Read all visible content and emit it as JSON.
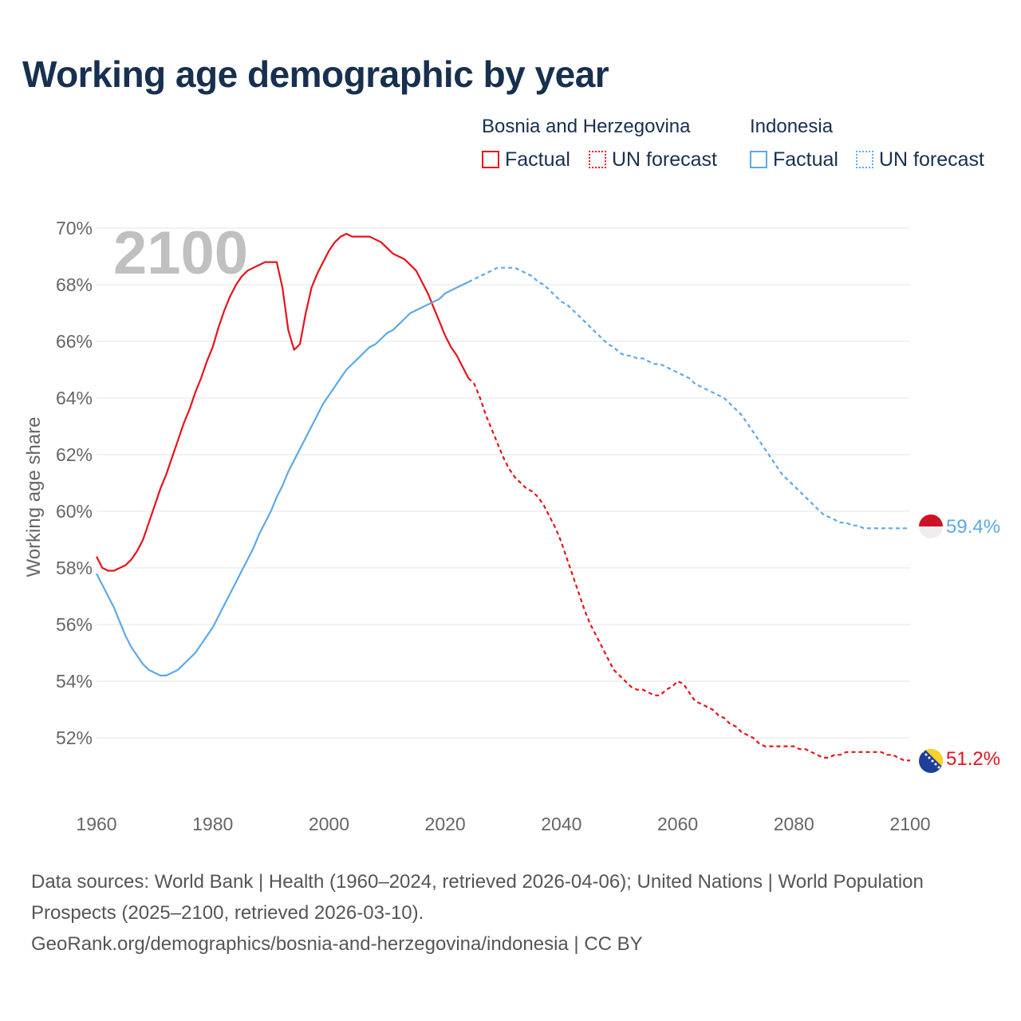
{
  "title": "Working age demographic by year",
  "legend": {
    "groups": [
      {
        "country": "Bosnia and Herzegovina",
        "color": "#e8121a",
        "factual": "Factual",
        "forecast": "UN forecast"
      },
      {
        "country": "Indonesia",
        "color": "#5ea9e6",
        "factual": "Factual",
        "forecast": "UN forecast"
      }
    ]
  },
  "footer": {
    "sources": "Data sources: World Bank | Health (1960–2024, retrieved 2026-04-06); United Nations | World Population Prospects (2025–2100, retrieved 2026-03-10).",
    "attribution": "GeoRank.org/demographics/bosnia-and-herzegovina/indonesia | CC BY"
  },
  "chart_data": {
    "type": "line",
    "ylabel": "Working age share",
    "xlim": [
      1960,
      2100
    ],
    "ylim": [
      50,
      70
    ],
    "xticks": [
      1960,
      1980,
      2000,
      2020,
      2040,
      2060,
      2080,
      2100
    ],
    "yticks": [
      52,
      54,
      56,
      58,
      60,
      62,
      64,
      66,
      68,
      70
    ],
    "ytick_labels": [
      "52%",
      "54%",
      "56%",
      "58%",
      "60%",
      "62%",
      "64%",
      "66%",
      "68%",
      "70%"
    ],
    "year_watermark": "2100",
    "forecast_start": 2024,
    "series": [
      {
        "name": "Bosnia and Herzegovina",
        "color": "#e8121a",
        "end_label": "51.2%",
        "points": [
          [
            1960,
            58.4
          ],
          [
            1961,
            58.0
          ],
          [
            1962,
            57.9
          ],
          [
            1963,
            57.9
          ],
          [
            1964,
            58.0
          ],
          [
            1965,
            58.1
          ],
          [
            1966,
            58.3
          ],
          [
            1967,
            58.6
          ],
          [
            1968,
            59.0
          ],
          [
            1969,
            59.6
          ],
          [
            1970,
            60.2
          ],
          [
            1971,
            60.8
          ],
          [
            1972,
            61.3
          ],
          [
            1973,
            61.9
          ],
          [
            1974,
            62.5
          ],
          [
            1975,
            63.1
          ],
          [
            1976,
            63.6
          ],
          [
            1977,
            64.2
          ],
          [
            1978,
            64.7
          ],
          [
            1979,
            65.3
          ],
          [
            1980,
            65.8
          ],
          [
            1981,
            66.5
          ],
          [
            1982,
            67.1
          ],
          [
            1983,
            67.6
          ],
          [
            1984,
            68.0
          ],
          [
            1985,
            68.3
          ],
          [
            1986,
            68.5
          ],
          [
            1987,
            68.6
          ],
          [
            1988,
            68.7
          ],
          [
            1989,
            68.8
          ],
          [
            1990,
            68.8
          ],
          [
            1991,
            68.8
          ],
          [
            1992,
            67.9
          ],
          [
            1993,
            66.4
          ],
          [
            1994,
            65.7
          ],
          [
            1995,
            65.9
          ],
          [
            1996,
            67.0
          ],
          [
            1997,
            67.9
          ],
          [
            1998,
            68.4
          ],
          [
            1999,
            68.8
          ],
          [
            2000,
            69.2
          ],
          [
            2001,
            69.5
          ],
          [
            2002,
            69.7
          ],
          [
            2003,
            69.8
          ],
          [
            2004,
            69.7
          ],
          [
            2005,
            69.7
          ],
          [
            2006,
            69.7
          ],
          [
            2007,
            69.7
          ],
          [
            2008,
            69.6
          ],
          [
            2009,
            69.5
          ],
          [
            2010,
            69.3
          ],
          [
            2011,
            69.1
          ],
          [
            2012,
            69.0
          ],
          [
            2013,
            68.9
          ],
          [
            2014,
            68.7
          ],
          [
            2015,
            68.5
          ],
          [
            2016,
            68.1
          ],
          [
            2017,
            67.7
          ],
          [
            2018,
            67.2
          ],
          [
            2019,
            66.7
          ],
          [
            2020,
            66.2
          ],
          [
            2021,
            65.8
          ],
          [
            2022,
            65.5
          ],
          [
            2023,
            65.1
          ],
          [
            2024,
            64.7
          ],
          [
            2025,
            64.5
          ],
          [
            2026,
            64.0
          ],
          [
            2027,
            63.4
          ],
          [
            2028,
            62.9
          ],
          [
            2029,
            62.4
          ],
          [
            2030,
            61.9
          ],
          [
            2031,
            61.5
          ],
          [
            2032,
            61.2
          ],
          [
            2033,
            61.0
          ],
          [
            2034,
            60.8
          ],
          [
            2035,
            60.7
          ],
          [
            2036,
            60.5
          ],
          [
            2037,
            60.2
          ],
          [
            2038,
            59.8
          ],
          [
            2039,
            59.4
          ],
          [
            2040,
            58.9
          ],
          [
            2041,
            58.3
          ],
          [
            2042,
            57.7
          ],
          [
            2043,
            57.1
          ],
          [
            2044,
            56.5
          ],
          [
            2045,
            56.0
          ],
          [
            2046,
            55.6
          ],
          [
            2047,
            55.2
          ],
          [
            2048,
            54.8
          ],
          [
            2049,
            54.4
          ],
          [
            2050,
            54.2
          ],
          [
            2051,
            54.0
          ],
          [
            2052,
            53.8
          ],
          [
            2053,
            53.7
          ],
          [
            2054,
            53.7
          ],
          [
            2055,
            53.6
          ],
          [
            2056,
            53.5
          ],
          [
            2057,
            53.5
          ],
          [
            2058,
            53.7
          ],
          [
            2059,
            53.8
          ],
          [
            2060,
            54.0
          ],
          [
            2061,
            53.9
          ],
          [
            2062,
            53.6
          ],
          [
            2063,
            53.3
          ],
          [
            2064,
            53.2
          ],
          [
            2065,
            53.1
          ],
          [
            2066,
            53.0
          ],
          [
            2067,
            52.8
          ],
          [
            2068,
            52.7
          ],
          [
            2069,
            52.5
          ],
          [
            2070,
            52.4
          ],
          [
            2071,
            52.2
          ],
          [
            2072,
            52.1
          ],
          [
            2073,
            52.0
          ],
          [
            2074,
            51.8
          ],
          [
            2075,
            51.7
          ],
          [
            2076,
            51.7
          ],
          [
            2077,
            51.7
          ],
          [
            2078,
            51.7
          ],
          [
            2079,
            51.7
          ],
          [
            2080,
            51.7
          ],
          [
            2081,
            51.6
          ],
          [
            2082,
            51.6
          ],
          [
            2083,
            51.5
          ],
          [
            2084,
            51.4
          ],
          [
            2085,
            51.3
          ],
          [
            2086,
            51.3
          ],
          [
            2087,
            51.4
          ],
          [
            2088,
            51.4
          ],
          [
            2089,
            51.5
          ],
          [
            2090,
            51.5
          ],
          [
            2091,
            51.5
          ],
          [
            2092,
            51.5
          ],
          [
            2093,
            51.5
          ],
          [
            2094,
            51.5
          ],
          [
            2095,
            51.5
          ],
          [
            2096,
            51.4
          ],
          [
            2097,
            51.4
          ],
          [
            2098,
            51.3
          ],
          [
            2099,
            51.2
          ],
          [
            2100,
            51.2
          ]
        ]
      },
      {
        "name": "Indonesia",
        "color": "#5ea9e6",
        "end_label": "59.4%",
        "points": [
          [
            1960,
            57.8
          ],
          [
            1961,
            57.4
          ],
          [
            1962,
            57.0
          ],
          [
            1963,
            56.6
          ],
          [
            1964,
            56.1
          ],
          [
            1965,
            55.6
          ],
          [
            1966,
            55.2
          ],
          [
            1967,
            54.9
          ],
          [
            1968,
            54.6
          ],
          [
            1969,
            54.4
          ],
          [
            1970,
            54.3
          ],
          [
            1971,
            54.2
          ],
          [
            1972,
            54.2
          ],
          [
            1973,
            54.3
          ],
          [
            1974,
            54.4
          ],
          [
            1975,
            54.6
          ],
          [
            1976,
            54.8
          ],
          [
            1977,
            55.0
          ],
          [
            1978,
            55.3
          ],
          [
            1979,
            55.6
          ],
          [
            1980,
            55.9
          ],
          [
            1981,
            56.3
          ],
          [
            1982,
            56.7
          ],
          [
            1983,
            57.1
          ],
          [
            1984,
            57.5
          ],
          [
            1985,
            57.9
          ],
          [
            1986,
            58.3
          ],
          [
            1987,
            58.7
          ],
          [
            1988,
            59.2
          ],
          [
            1989,
            59.6
          ],
          [
            1990,
            60.0
          ],
          [
            1991,
            60.5
          ],
          [
            1992,
            60.9
          ],
          [
            1993,
            61.4
          ],
          [
            1994,
            61.8
          ],
          [
            1995,
            62.2
          ],
          [
            1996,
            62.6
          ],
          [
            1997,
            63.0
          ],
          [
            1998,
            63.4
          ],
          [
            1999,
            63.8
          ],
          [
            2000,
            64.1
          ],
          [
            2001,
            64.4
          ],
          [
            2002,
            64.7
          ],
          [
            2003,
            65.0
          ],
          [
            2004,
            65.2
          ],
          [
            2005,
            65.4
          ],
          [
            2006,
            65.6
          ],
          [
            2007,
            65.8
          ],
          [
            2008,
            65.9
          ],
          [
            2009,
            66.1
          ],
          [
            2010,
            66.3
          ],
          [
            2011,
            66.4
          ],
          [
            2012,
            66.6
          ],
          [
            2013,
            66.8
          ],
          [
            2014,
            67.0
          ],
          [
            2015,
            67.1
          ],
          [
            2016,
            67.2
          ],
          [
            2017,
            67.3
          ],
          [
            2018,
            67.4
          ],
          [
            2019,
            67.5
          ],
          [
            2020,
            67.7
          ],
          [
            2021,
            67.8
          ],
          [
            2022,
            67.9
          ],
          [
            2023,
            68.0
          ],
          [
            2024,
            68.1
          ],
          [
            2025,
            68.2
          ],
          [
            2026,
            68.3
          ],
          [
            2027,
            68.4
          ],
          [
            2028,
            68.5
          ],
          [
            2029,
            68.6
          ],
          [
            2030,
            68.6
          ],
          [
            2031,
            68.6
          ],
          [
            2032,
            68.6
          ],
          [
            2033,
            68.5
          ],
          [
            2034,
            68.4
          ],
          [
            2035,
            68.3
          ],
          [
            2036,
            68.1
          ],
          [
            2037,
            68.0
          ],
          [
            2038,
            67.8
          ],
          [
            2039,
            67.6
          ],
          [
            2040,
            67.4
          ],
          [
            2041,
            67.3
          ],
          [
            2042,
            67.1
          ],
          [
            2043,
            66.9
          ],
          [
            2044,
            66.7
          ],
          [
            2045,
            66.5
          ],
          [
            2046,
            66.3
          ],
          [
            2047,
            66.1
          ],
          [
            2048,
            65.9
          ],
          [
            2049,
            65.8
          ],
          [
            2050,
            65.6
          ],
          [
            2051,
            65.5
          ],
          [
            2052,
            65.5
          ],
          [
            2053,
            65.4
          ],
          [
            2054,
            65.4
          ],
          [
            2055,
            65.3
          ],
          [
            2056,
            65.2
          ],
          [
            2057,
            65.2
          ],
          [
            2058,
            65.1
          ],
          [
            2059,
            65.0
          ],
          [
            2060,
            64.9
          ],
          [
            2061,
            64.8
          ],
          [
            2062,
            64.7
          ],
          [
            2063,
            64.5
          ],
          [
            2064,
            64.4
          ],
          [
            2065,
            64.3
          ],
          [
            2066,
            64.2
          ],
          [
            2067,
            64.1
          ],
          [
            2068,
            64.0
          ],
          [
            2069,
            63.8
          ],
          [
            2070,
            63.6
          ],
          [
            2071,
            63.4
          ],
          [
            2072,
            63.1
          ],
          [
            2073,
            62.8
          ],
          [
            2074,
            62.5
          ],
          [
            2075,
            62.2
          ],
          [
            2076,
            61.9
          ],
          [
            2077,
            61.6
          ],
          [
            2078,
            61.3
          ],
          [
            2079,
            61.1
          ],
          [
            2080,
            60.9
          ],
          [
            2081,
            60.7
          ],
          [
            2082,
            60.5
          ],
          [
            2083,
            60.3
          ],
          [
            2084,
            60.1
          ],
          [
            2085,
            59.9
          ],
          [
            2086,
            59.8
          ],
          [
            2087,
            59.7
          ],
          [
            2088,
            59.6
          ],
          [
            2089,
            59.6
          ],
          [
            2090,
            59.5
          ],
          [
            2091,
            59.5
          ],
          [
            2092,
            59.4
          ],
          [
            2093,
            59.4
          ],
          [
            2094,
            59.4
          ],
          [
            2095,
            59.4
          ],
          [
            2096,
            59.4
          ],
          [
            2097,
            59.4
          ],
          [
            2098,
            59.4
          ],
          [
            2099,
            59.4
          ],
          [
            2100,
            59.4
          ]
        ]
      }
    ]
  }
}
